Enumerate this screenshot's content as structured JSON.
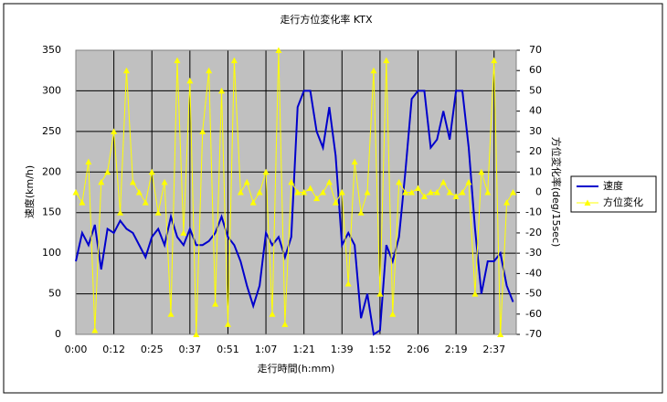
{
  "chart_data": {
    "type": "line",
    "title": "走行方位変化率 KTX",
    "x_label": "走行時間(h:mm)",
    "y_label": "速度(km/h)",
    "y2_label": "方位変化率(deg/15sec)",
    "x": [
      0,
      1,
      2,
      3,
      4,
      5,
      6,
      7,
      8,
      9,
      10,
      11,
      12,
      13,
      14,
      15,
      16,
      17,
      18,
      19,
      20,
      21,
      22,
      23,
      24,
      25,
      26,
      27,
      28,
      29,
      30,
      31,
      32,
      33,
      34,
      35,
      36,
      37,
      38,
      39,
      40,
      41,
      42,
      43,
      44,
      45,
      46,
      47,
      48,
      49,
      50,
      51,
      52,
      53,
      54,
      55,
      56,
      57,
      58,
      59,
      60,
      61,
      62,
      63,
      64,
      65,
      66,
      67,
      68,
      69
    ],
    "xlim": [
      0,
      69.5
    ],
    "xticks": [
      {
        "value": 0,
        "label": "0:00"
      },
      {
        "value": 6,
        "label": "0:12"
      },
      {
        "value": 12,
        "label": "0:25"
      },
      {
        "value": 18,
        "label": "0:37"
      },
      {
        "value": 24,
        "label": "0:51"
      },
      {
        "value": 30,
        "label": "1:07"
      },
      {
        "value": 36,
        "label": "1:21"
      },
      {
        "value": 42,
        "label": "1:39"
      },
      {
        "value": 48,
        "label": "1:52"
      },
      {
        "value": 54,
        "label": "2:06"
      },
      {
        "value": 60,
        "label": "2:19"
      },
      {
        "value": 66,
        "label": "2:37"
      }
    ],
    "ylim": [
      0,
      350
    ],
    "yticks": [
      0,
      50,
      100,
      150,
      200,
      250,
      300,
      350
    ],
    "y2lim": [
      -70,
      70
    ],
    "y2ticks": [
      -70,
      -60,
      -50,
      -40,
      -30,
      -20,
      -10,
      0,
      10,
      20,
      30,
      40,
      50,
      60,
      70
    ],
    "grid": true,
    "plot_background": "#c0c0c0",
    "series": [
      {
        "name": "速度",
        "color": "#0000cc",
        "values": [
          90,
          125,
          110,
          135,
          80,
          130,
          125,
          140,
          130,
          125,
          110,
          95,
          120,
          130,
          110,
          145,
          120,
          110,
          130,
          110,
          110,
          115,
          125,
          145,
          120,
          110,
          90,
          60,
          35,
          60,
          125,
          110,
          120,
          95,
          120,
          280,
          300,
          300,
          250,
          230,
          280,
          220,
          110,
          125,
          110,
          20,
          50,
          0,
          5,
          110,
          90,
          120,
          200,
          290,
          300,
          300,
          230,
          240,
          275,
          240,
          300,
          300,
          230,
          130,
          50,
          90,
          90,
          100,
          60,
          40
        ]
      },
      {
        "name": "方位変化",
        "color": "#ffff00",
        "axis": "y2",
        "marker": "triangle",
        "values": [
          0,
          -5,
          15,
          -68,
          5,
          10,
          30,
          -10,
          60,
          5,
          0,
          -5,
          10,
          -10,
          5,
          -60,
          65,
          -20,
          55,
          -70,
          30,
          60,
          -55,
          50,
          -65,
          65,
          0,
          5,
          -5,
          0,
          10,
          -60,
          70,
          -65,
          5,
          0,
          0,
          2,
          -3,
          0,
          5,
          -5,
          0,
          -45,
          15,
          -10,
          0,
          60,
          -50,
          65,
          -60,
          5,
          0,
          0,
          2,
          -2,
          0,
          0,
          5,
          0,
          -2,
          0,
          5,
          -50,
          10,
          0,
          65,
          -70,
          -5,
          0
        ]
      }
    ]
  }
}
